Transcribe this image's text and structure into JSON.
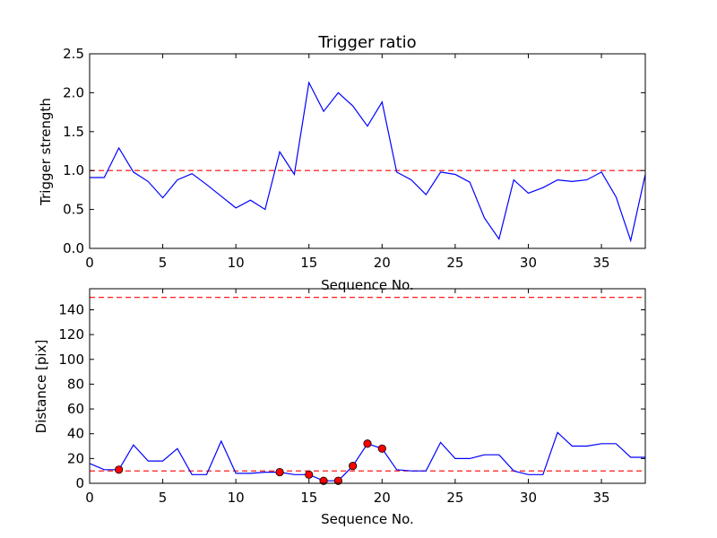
{
  "chart_data": [
    {
      "type": "line",
      "title": "Trigger ratio",
      "xlabel": "Sequence No.",
      "ylabel": "Trigger strength",
      "xlim": [
        0,
        38
      ],
      "ylim": [
        0,
        2.5
      ],
      "xticks": [
        "0",
        "5",
        "10",
        "15",
        "20",
        "25",
        "30",
        "35"
      ],
      "xtick_values": [
        0,
        5,
        10,
        15,
        20,
        25,
        30,
        35
      ],
      "yticks": [
        "0.0",
        "0.5",
        "1.0",
        "1.5",
        "2.0",
        "2.5"
      ],
      "ytick_values": [
        0,
        0.5,
        1.0,
        1.5,
        2.0,
        2.5
      ],
      "grid": false,
      "line_color": "#0000ff",
      "threshold_color": "#ff0000",
      "thresholds": [
        1.0
      ],
      "x": [
        0,
        1,
        2,
        3,
        4,
        5,
        6,
        7,
        8,
        9,
        10,
        11,
        12,
        13,
        14,
        15,
        16,
        17,
        18,
        19,
        20,
        21,
        22,
        23,
        24,
        25,
        26,
        27,
        28,
        29,
        30,
        31,
        32,
        33,
        34,
        35,
        36,
        37,
        38
      ],
      "y": [
        0.91,
        0.91,
        1.29,
        0.98,
        0.86,
        0.65,
        0.88,
        0.96,
        0.82,
        0.67,
        0.52,
        0.62,
        0.5,
        1.24,
        0.95,
        2.13,
        1.76,
        2.0,
        1.83,
        1.57,
        1.88,
        0.98,
        0.88,
        0.69,
        0.98,
        0.95,
        0.85,
        0.39,
        0.12,
        0.88,
        0.71,
        0.78,
        0.88,
        0.86,
        0.88,
        0.98,
        0.66,
        0.1,
        0.95
      ]
    },
    {
      "type": "line",
      "title": "",
      "xlabel": "Sequence No.",
      "ylabel": "Distance [pix]",
      "xlim": [
        0,
        38
      ],
      "ylim": [
        0,
        157
      ],
      "xticks": [
        "0",
        "5",
        "10",
        "15",
        "20",
        "25",
        "30",
        "35"
      ],
      "xtick_values": [
        0,
        5,
        10,
        15,
        20,
        25,
        30,
        35
      ],
      "yticks": [
        "0",
        "20",
        "40",
        "60",
        "80",
        "100",
        "120",
        "140"
      ],
      "ytick_values": [
        0,
        20,
        40,
        60,
        80,
        100,
        120,
        140
      ],
      "grid": false,
      "line_color": "#0000ff",
      "threshold_color": "#ff0000",
      "marker_color": "#ff0000",
      "thresholds": [
        10,
        150
      ],
      "x": [
        0,
        1,
        2,
        3,
        4,
        5,
        6,
        7,
        8,
        9,
        10,
        11,
        12,
        13,
        14,
        15,
        16,
        17,
        18,
        19,
        20,
        21,
        22,
        23,
        24,
        25,
        26,
        27,
        28,
        29,
        30,
        31,
        32,
        33,
        34,
        35,
        36,
        37,
        38
      ],
      "y": [
        16,
        11,
        11,
        31,
        18,
        18,
        28,
        7,
        7,
        34,
        8,
        8,
        9,
        9,
        7,
        7,
        2,
        2,
        14,
        32,
        28,
        11,
        10,
        10,
        33,
        20,
        20,
        23,
        23,
        10,
        7,
        7,
        41,
        30,
        30,
        32,
        32,
        21,
        21
      ],
      "highlighted_x": [
        2,
        13,
        15,
        16,
        17,
        18,
        19,
        20
      ],
      "highlighted_y": [
        11,
        9,
        7,
        2,
        2,
        14,
        32,
        28
      ]
    }
  ]
}
